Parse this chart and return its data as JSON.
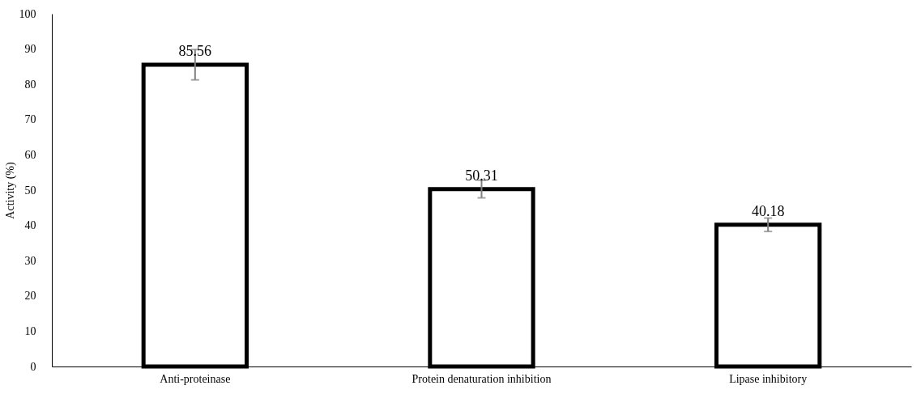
{
  "chart_data": {
    "type": "bar",
    "ylabel": "Activity (%)",
    "categories": [
      "Anti-proteinase",
      "Protein denaturation inhibition",
      "Lipase inhibitory"
    ],
    "series": [
      {
        "color": "#000000",
        "values": [
          85.56,
          50.31,
          40.18
        ],
        "errors": [
          4.3,
          2.5,
          1.9
        ]
      }
    ],
    "ylim": [
      0,
      100
    ],
    "yticks": [
      0,
      10,
      20,
      30,
      40,
      50,
      60,
      70,
      80,
      90,
      100
    ],
    "data_labels": true,
    "grid": false
  }
}
